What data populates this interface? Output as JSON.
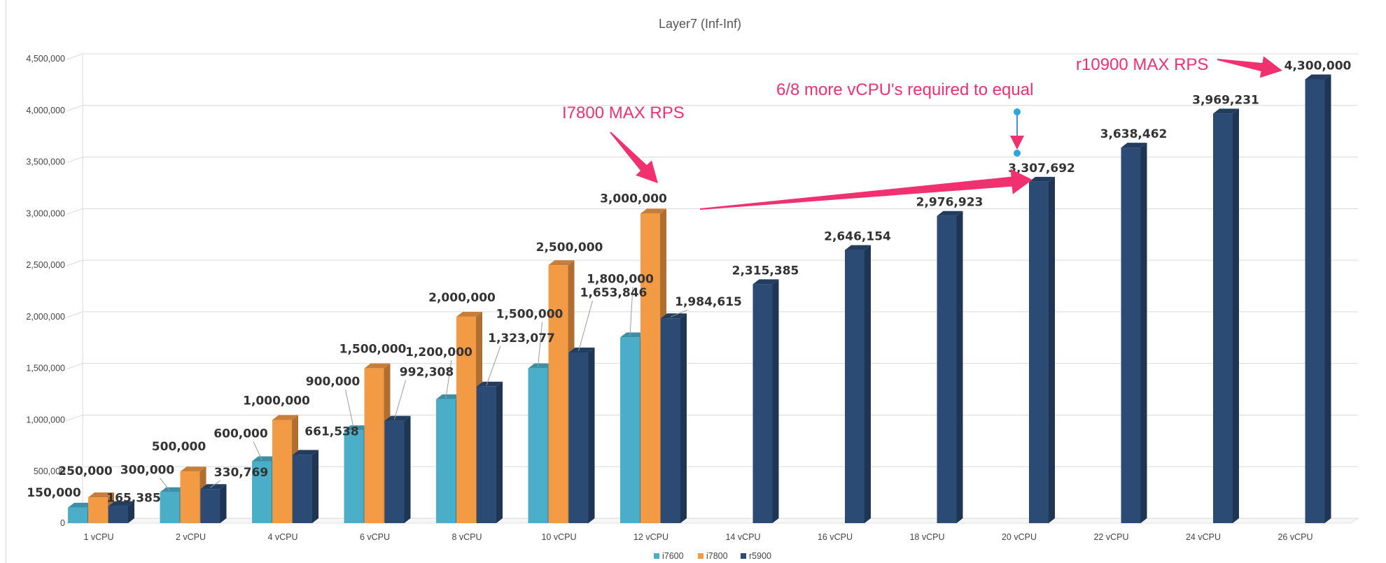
{
  "chart_data": {
    "type": "bar",
    "title": "Layer7 (Inf-Inf)",
    "xlabel": "",
    "ylabel": "",
    "ylim": [
      0,
      4500000
    ],
    "yticks": [
      0,
      500000,
      1000000,
      1500000,
      2000000,
      2500000,
      3000000,
      3500000,
      4000000,
      4500000
    ],
    "ytick_labels": [
      "0",
      "500,000",
      "1,000,000",
      "1,500,000",
      "2,000,000",
      "2,500,000",
      "3,000,000",
      "3,500,000",
      "4,000,000",
      "4,500,000"
    ],
    "grid": true,
    "style": "3d-clustered-column",
    "legend_position": "bottom",
    "categories": [
      "1 vCPU",
      "2 vCPU",
      "4 vCPU",
      "6 vCPU",
      "8 vCPU",
      "10 vCPU",
      "12 vCPU",
      "14 vCPU",
      "16 vCPU",
      "18 vCPU",
      "20 vCPU",
      "22 vCPU",
      "24 vCPU",
      "26 vCPU"
    ],
    "series": [
      {
        "name": "i7600",
        "color": "#4aaec9",
        "values": [
          150000,
          300000,
          600000,
          900000,
          1200000,
          1500000,
          1800000,
          null,
          null,
          null,
          null,
          null,
          null,
          null
        ],
        "labels": [
          "150,000",
          "300,000",
          "600,000",
          "900,000",
          "1,200,000",
          "1,500,000",
          "1,800,000",
          null,
          null,
          null,
          null,
          null,
          null,
          null
        ]
      },
      {
        "name": "i7800",
        "color": "#f39a45",
        "values": [
          250000,
          500000,
          1000000,
          1500000,
          2000000,
          2500000,
          3000000,
          null,
          null,
          null,
          null,
          null,
          null,
          null
        ],
        "labels": [
          "250,000",
          "500,000",
          "1,000,000",
          "1,500,000",
          "2,000,000",
          "2,500,000",
          "3,000,000",
          null,
          null,
          null,
          null,
          null,
          null,
          null
        ]
      },
      {
        "name": "r5900",
        "color": "#2b4a74",
        "values": [
          165385,
          330769,
          661538,
          992308,
          1323077,
          1653846,
          1984615,
          2315385,
          2646154,
          2976923,
          3307692,
          3638462,
          3969231,
          4300000
        ],
        "labels": [
          "165,385",
          "330,769",
          "661,538",
          "992,308",
          "1,323,077",
          "1,653,846",
          "1,984,615",
          "2,315,385",
          "2,646,154",
          "2,976,923",
          "3,307,692",
          "3,638,462",
          "3,969,231",
          "4,300,000"
        ]
      }
    ],
    "annotations": [
      "I7800 MAX RPS",
      "6/8 more vCPU's required to equal",
      "r10900 MAX RPS"
    ],
    "annotation_color": "#f0306f"
  }
}
